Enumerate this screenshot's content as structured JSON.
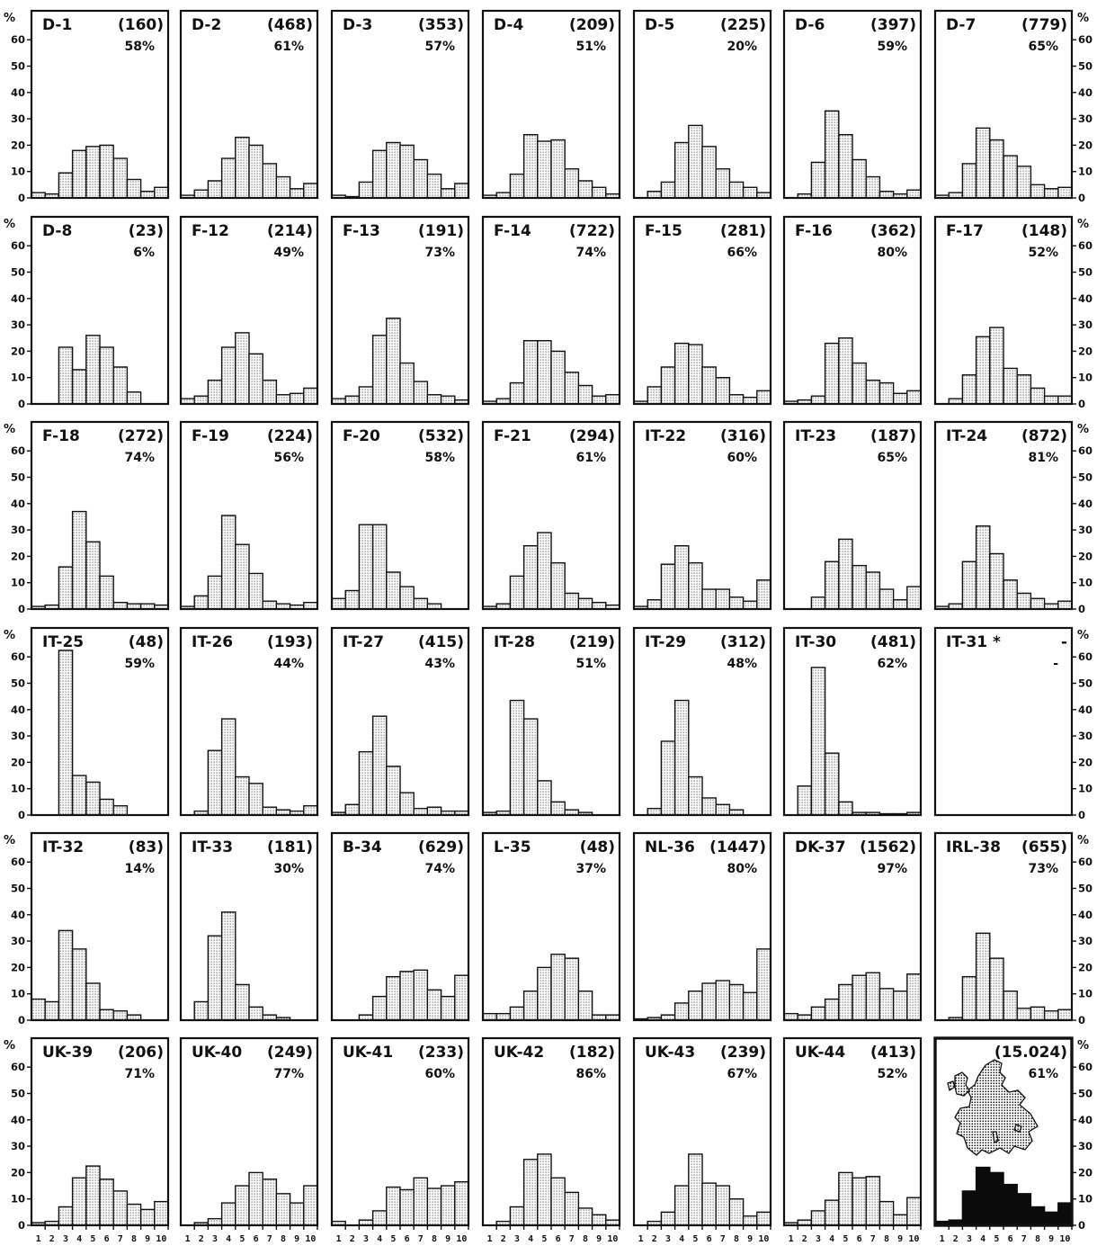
{
  "figure": {
    "y_unit": "%",
    "y_ticks": [
      0,
      10,
      20,
      30,
      40,
      50,
      60
    ],
    "x_ticks": [
      "1",
      "2",
      "3",
      "4",
      "5",
      "6",
      "7",
      "8",
      "9",
      "10"
    ]
  },
  "chart_data": [
    {
      "type": "bar",
      "label": "D-1",
      "count": "(160)",
      "percent": "58%",
      "categories": [
        "1",
        "2",
        "3",
        "4",
        "5",
        "6",
        "7",
        "8",
        "9",
        "10"
      ],
      "values": [
        2,
        1.5,
        9.5,
        18,
        19.5,
        20,
        15,
        7,
        2.5,
        4
      ],
      "ylim": [
        0,
        70
      ]
    },
    {
      "type": "bar",
      "label": "D-2",
      "count": "(468)",
      "percent": "61%",
      "categories": [
        "1",
        "2",
        "3",
        "4",
        "5",
        "6",
        "7",
        "8",
        "9",
        "10"
      ],
      "values": [
        1,
        3,
        6.5,
        15,
        23,
        20,
        13,
        8,
        3.5,
        5.5
      ],
      "ylim": [
        0,
        70
      ]
    },
    {
      "type": "bar",
      "label": "D-3",
      "count": "(353)",
      "percent": "57%",
      "categories": [
        "1",
        "2",
        "3",
        "4",
        "5",
        "6",
        "7",
        "8",
        "9",
        "10"
      ],
      "values": [
        1,
        0.5,
        6,
        18,
        21,
        20,
        14.5,
        9,
        3.5,
        5.5
      ],
      "ylim": [
        0,
        70
      ]
    },
    {
      "type": "bar",
      "label": "D-4",
      "count": "(209)",
      "percent": "51%",
      "categories": [
        "1",
        "2",
        "3",
        "4",
        "5",
        "6",
        "7",
        "8",
        "9",
        "10"
      ],
      "values": [
        1,
        2,
        9,
        24,
        21.5,
        22,
        11,
        6.5,
        4,
        1.5
      ],
      "ylim": [
        0,
        70
      ]
    },
    {
      "type": "bar",
      "label": "D-5",
      "count": "(225)",
      "percent": "20%",
      "categories": [
        "1",
        "2",
        "3",
        "4",
        "5",
        "6",
        "7",
        "8",
        "9",
        "10"
      ],
      "values": [
        0,
        2.5,
        6,
        21,
        27.5,
        19.5,
        11,
        6,
        4,
        2
      ],
      "ylim": [
        0,
        70
      ]
    },
    {
      "type": "bar",
      "label": "D-6",
      "count": "(397)",
      "percent": "59%",
      "categories": [
        "1",
        "2",
        "3",
        "4",
        "5",
        "6",
        "7",
        "8",
        "9",
        "10"
      ],
      "values": [
        0,
        1.5,
        13.5,
        33,
        24,
        14.5,
        8,
        2.5,
        1.5,
        3
      ],
      "ylim": [
        0,
        70
      ]
    },
    {
      "type": "bar",
      "label": "D-7",
      "count": "(779)",
      "percent": "65%",
      "categories": [
        "1",
        "2",
        "3",
        "4",
        "5",
        "6",
        "7",
        "8",
        "9",
        "10"
      ],
      "values": [
        1,
        2,
        13,
        26.5,
        22,
        16,
        12,
        5,
        3.5,
        4
      ],
      "ylim": [
        0,
        70
      ]
    },
    {
      "type": "bar",
      "label": "D-8",
      "count": "(23)",
      "percent": "6%",
      "categories": [
        "1",
        "2",
        "3",
        "4",
        "5",
        "6",
        "7",
        "8",
        "9",
        "10"
      ],
      "values": [
        0,
        0,
        21.5,
        13,
        26,
        21.5,
        14,
        4.5,
        0,
        0
      ],
      "ylim": [
        0,
        70
      ]
    },
    {
      "type": "bar",
      "label": "F-12",
      "count": "(214)",
      "percent": "49%",
      "categories": [
        "1",
        "2",
        "3",
        "4",
        "5",
        "6",
        "7",
        "8",
        "9",
        "10"
      ],
      "values": [
        2,
        3,
        9,
        21.5,
        27,
        19,
        9,
        3.5,
        4,
        6
      ],
      "ylim": [
        0,
        70
      ]
    },
    {
      "type": "bar",
      "label": "F-13",
      "count": "(191)",
      "percent": "73%",
      "categories": [
        "1",
        "2",
        "3",
        "4",
        "5",
        "6",
        "7",
        "8",
        "9",
        "10"
      ],
      "values": [
        2,
        3,
        6.5,
        26,
        32.5,
        15.5,
        8.5,
        3.5,
        3,
        1.5
      ],
      "ylim": [
        0,
        70
      ]
    },
    {
      "type": "bar",
      "label": "F-14",
      "count": "(722)",
      "percent": "74%",
      "categories": [
        "1",
        "2",
        "3",
        "4",
        "5",
        "6",
        "7",
        "8",
        "9",
        "10"
      ],
      "values": [
        1,
        2,
        8,
        24,
        24,
        20,
        12,
        7,
        3,
        3.5
      ],
      "ylim": [
        0,
        70
      ]
    },
    {
      "type": "bar",
      "label": "F-15",
      "count": "(281)",
      "percent": "66%",
      "categories": [
        "1",
        "2",
        "3",
        "4",
        "5",
        "6",
        "7",
        "8",
        "9",
        "10"
      ],
      "values": [
        1,
        6.5,
        14,
        23,
        22.5,
        14,
        10,
        3.5,
        2.5,
        5
      ],
      "ylim": [
        0,
        70
      ]
    },
    {
      "type": "bar",
      "label": "F-16",
      "count": "(362)",
      "percent": "80%",
      "categories": [
        "1",
        "2",
        "3",
        "4",
        "5",
        "6",
        "7",
        "8",
        "9",
        "10"
      ],
      "values": [
        1,
        1.5,
        3,
        23,
        25,
        15.5,
        9,
        8,
        4,
        5
      ],
      "ylim": [
        0,
        70
      ]
    },
    {
      "type": "bar",
      "label": "F-17",
      "count": "(148)",
      "percent": "52%",
      "categories": [
        "1",
        "2",
        "3",
        "4",
        "5",
        "6",
        "7",
        "8",
        "9",
        "10"
      ],
      "values": [
        0,
        2,
        11,
        25.5,
        29,
        13.5,
        11,
        6,
        3,
        3
      ],
      "ylim": [
        0,
        70
      ]
    },
    {
      "type": "bar",
      "label": "F-18",
      "count": "(272)",
      "percent": "74%",
      "categories": [
        "1",
        "2",
        "3",
        "4",
        "5",
        "6",
        "7",
        "8",
        "9",
        "10"
      ],
      "values": [
        1,
        1.5,
        16,
        37,
        25.5,
        12.5,
        2.5,
        2,
        2,
        1.5
      ],
      "ylim": [
        0,
        70
      ]
    },
    {
      "type": "bar",
      "label": "F-19",
      "count": "(224)",
      "percent": "56%",
      "categories": [
        "1",
        "2",
        "3",
        "4",
        "5",
        "6",
        "7",
        "8",
        "9",
        "10"
      ],
      "values": [
        1,
        5,
        12.5,
        35.5,
        24.5,
        13.5,
        3,
        2,
        1.5,
        2.5
      ],
      "ylim": [
        0,
        70
      ]
    },
    {
      "type": "bar",
      "label": "F-20",
      "count": "(532)",
      "percent": "58%",
      "categories": [
        "1",
        "2",
        "3",
        "4",
        "5",
        "6",
        "7",
        "8",
        "9",
        "10"
      ],
      "values": [
        4,
        7,
        32,
        32,
        14,
        8.5,
        4,
        2,
        0,
        0
      ],
      "ylim": [
        0,
        70
      ]
    },
    {
      "type": "bar",
      "label": "F-21",
      "count": "(294)",
      "percent": "61%",
      "categories": [
        "1",
        "2",
        "3",
        "4",
        "5",
        "6",
        "7",
        "8",
        "9",
        "10"
      ],
      "values": [
        1,
        2,
        12.5,
        24,
        29,
        17.5,
        6,
        4,
        2.5,
        1.5
      ],
      "ylim": [
        0,
        70
      ]
    },
    {
      "type": "bar",
      "label": "IT-22",
      "count": "(316)",
      "percent": "60%",
      "categories": [
        "1",
        "2",
        "3",
        "4",
        "5",
        "6",
        "7",
        "8",
        "9",
        "10"
      ],
      "values": [
        1,
        3.5,
        17,
        24,
        17.5,
        7.5,
        7.5,
        4.5,
        3,
        11
      ],
      "ylim": [
        0,
        70
      ]
    },
    {
      "type": "bar",
      "label": "IT-23",
      "count": "(187)",
      "percent": "65%",
      "categories": [
        "1",
        "2",
        "3",
        "4",
        "5",
        "6",
        "7",
        "8",
        "9",
        "10"
      ],
      "values": [
        0,
        0,
        4.5,
        18,
        26.5,
        16.5,
        14,
        7.5,
        3.5,
        8.5
      ],
      "ylim": [
        0,
        70
      ]
    },
    {
      "type": "bar",
      "label": "IT-24",
      "count": "(872)",
      "percent": "81%",
      "categories": [
        "1",
        "2",
        "3",
        "4",
        "5",
        "6",
        "7",
        "8",
        "9",
        "10"
      ],
      "values": [
        1,
        2,
        18,
        31.5,
        21,
        11,
        6,
        4,
        2,
        3
      ],
      "ylim": [
        0,
        70
      ]
    },
    {
      "type": "bar",
      "label": "IT-25",
      "count": "(48)",
      "percent": "59%",
      "categories": [
        "1",
        "2",
        "3",
        "4",
        "5",
        "6",
        "7",
        "8",
        "9",
        "10"
      ],
      "values": [
        0,
        0,
        62.5,
        15,
        12.5,
        6,
        3.5,
        0,
        0,
        0
      ],
      "ylim": [
        0,
        70
      ]
    },
    {
      "type": "bar",
      "label": "IT-26",
      "count": "(193)",
      "percent": "44%",
      "categories": [
        "1",
        "2",
        "3",
        "4",
        "5",
        "6",
        "7",
        "8",
        "9",
        "10"
      ],
      "values": [
        0,
        1.5,
        24.5,
        36.5,
        14.5,
        12,
        3,
        2,
        1.5,
        3.5
      ],
      "ylim": [
        0,
        70
      ]
    },
    {
      "type": "bar",
      "label": "IT-27",
      "count": "(415)",
      "percent": "43%",
      "categories": [
        "1",
        "2",
        "3",
        "4",
        "5",
        "6",
        "7",
        "8",
        "9",
        "10"
      ],
      "values": [
        1,
        4,
        24,
        37.5,
        18.5,
        8.5,
        2.5,
        3,
        1.5,
        1.5
      ],
      "ylim": [
        0,
        70
      ]
    },
    {
      "type": "bar",
      "label": "IT-28",
      "count": "(219)",
      "percent": "51%",
      "categories": [
        "1",
        "2",
        "3",
        "4",
        "5",
        "6",
        "7",
        "8",
        "9",
        "10"
      ],
      "values": [
        1,
        1.5,
        43.5,
        36.5,
        13,
        5,
        2,
        1,
        0,
        0
      ],
      "ylim": [
        0,
        70
      ]
    },
    {
      "type": "bar",
      "label": "IT-29",
      "count": "(312)",
      "percent": "48%",
      "categories": [
        "1",
        "2",
        "3",
        "4",
        "5",
        "6",
        "7",
        "8",
        "9",
        "10"
      ],
      "values": [
        0,
        2.5,
        28,
        43.5,
        14.5,
        6.5,
        4,
        2,
        0,
        0
      ],
      "ylim": [
        0,
        70
      ]
    },
    {
      "type": "bar",
      "label": "IT-30",
      "count": "(481)",
      "percent": "62%",
      "categories": [
        "1",
        "2",
        "3",
        "4",
        "5",
        "6",
        "7",
        "8",
        "9",
        "10"
      ],
      "values": [
        0,
        11,
        56,
        23.5,
        5,
        1,
        1,
        0.5,
        0.5,
        1
      ],
      "ylim": [
        0,
        70
      ]
    },
    {
      "type": "bar",
      "label": "IT-31 *",
      "count": "-",
      "percent": "-",
      "categories": [
        "1",
        "2",
        "3",
        "4",
        "5",
        "6",
        "7",
        "8",
        "9",
        "10"
      ],
      "values": [
        0,
        0,
        0,
        0,
        0,
        0,
        0,
        0,
        0,
        0
      ],
      "ylim": [
        0,
        70
      ]
    },
    {
      "type": "bar",
      "label": "IT-32",
      "count": "(83)",
      "percent": "14%",
      "categories": [
        "1",
        "2",
        "3",
        "4",
        "5",
        "6",
        "7",
        "8",
        "9",
        "10"
      ],
      "values": [
        8,
        7,
        34,
        27,
        14,
        4,
        3.5,
        2,
        0,
        0
      ],
      "ylim": [
        0,
        70
      ]
    },
    {
      "type": "bar",
      "label": "IT-33",
      "count": "(181)",
      "percent": "30%",
      "categories": [
        "1",
        "2",
        "3",
        "4",
        "5",
        "6",
        "7",
        "8",
        "9",
        "10"
      ],
      "values": [
        0,
        7,
        32,
        41,
        13.5,
        5,
        2,
        1,
        0,
        0
      ],
      "ylim": [
        0,
        70
      ]
    },
    {
      "type": "bar",
      "label": "B-34",
      "count": "(629)",
      "percent": "74%",
      "categories": [
        "1",
        "2",
        "3",
        "4",
        "5",
        "6",
        "7",
        "8",
        "9",
        "10"
      ],
      "values": [
        0,
        0,
        2,
        9,
        16.5,
        18.5,
        19,
        11.5,
        9,
        17
      ],
      "ylim": [
        0,
        70
      ]
    },
    {
      "type": "bar",
      "label": "L-35",
      "count": "(48)",
      "percent": "37%",
      "categories": [
        "1",
        "2",
        "3",
        "4",
        "5",
        "6",
        "7",
        "8",
        "9",
        "10"
      ],
      "values": [
        2.5,
        2.5,
        5,
        11,
        20,
        25,
        23.5,
        11,
        2,
        2
      ],
      "ylim": [
        0,
        70
      ]
    },
    {
      "type": "bar",
      "label": "NL-36",
      "count": "(1447)",
      "percent": "80%",
      "categories": [
        "1",
        "2",
        "3",
        "4",
        "5",
        "6",
        "7",
        "8",
        "9",
        "10"
      ],
      "values": [
        0.5,
        1,
        2,
        6.5,
        11,
        14,
        15,
        13.5,
        10.5,
        27
      ],
      "ylim": [
        0,
        70
      ]
    },
    {
      "type": "bar",
      "label": "DK-37",
      "count": "(1562)",
      "percent": "97%",
      "categories": [
        "1",
        "2",
        "3",
        "4",
        "5",
        "6",
        "7",
        "8",
        "9",
        "10"
      ],
      "values": [
        2.5,
        2,
        5,
        8,
        13.5,
        17,
        18,
        12,
        11,
        17.5
      ],
      "ylim": [
        0,
        70
      ]
    },
    {
      "type": "bar",
      "label": "IRL-38",
      "count": "(655)",
      "percent": "73%",
      "categories": [
        "1",
        "2",
        "3",
        "4",
        "5",
        "6",
        "7",
        "8",
        "9",
        "10"
      ],
      "values": [
        0,
        1,
        16.5,
        33,
        23.5,
        11,
        4.5,
        5,
        3.5,
        4
      ],
      "ylim": [
        0,
        70
      ]
    },
    {
      "type": "bar",
      "label": "UK-39",
      "count": "(206)",
      "percent": "71%",
      "categories": [
        "1",
        "2",
        "3",
        "4",
        "5",
        "6",
        "7",
        "8",
        "9",
        "10"
      ],
      "values": [
        1,
        1.5,
        7,
        18,
        22.5,
        17.5,
        13,
        8,
        6,
        9
      ],
      "ylim": [
        0,
        70
      ]
    },
    {
      "type": "bar",
      "label": "UK-40",
      "count": "(249)",
      "percent": "77%",
      "categories": [
        "1",
        "2",
        "3",
        "4",
        "5",
        "6",
        "7",
        "8",
        "9",
        "10"
      ],
      "values": [
        0,
        1,
        2.5,
        8.5,
        15,
        20,
        17.5,
        12,
        8.5,
        15
      ],
      "ylim": [
        0,
        70
      ]
    },
    {
      "type": "bar",
      "label": "UK-41",
      "count": "(233)",
      "percent": "60%",
      "categories": [
        "1",
        "2",
        "3",
        "4",
        "5",
        "6",
        "7",
        "8",
        "9",
        "10"
      ],
      "values": [
        1.5,
        0,
        2,
        5.5,
        14.5,
        13.5,
        18,
        14,
        15,
        16.5
      ],
      "ylim": [
        0,
        70
      ]
    },
    {
      "type": "bar",
      "label": "UK-42",
      "count": "(182)",
      "percent": "86%",
      "categories": [
        "1",
        "2",
        "3",
        "4",
        "5",
        "6",
        "7",
        "8",
        "9",
        "10"
      ],
      "values": [
        0,
        1.5,
        7,
        25,
        27,
        18,
        12.5,
        6.5,
        4,
        2
      ],
      "ylim": [
        0,
        70
      ]
    },
    {
      "type": "bar",
      "label": "UK-43",
      "count": "(239)",
      "percent": "67%",
      "categories": [
        "1",
        "2",
        "3",
        "4",
        "5",
        "6",
        "7",
        "8",
        "9",
        "10"
      ],
      "values": [
        0,
        1.5,
        5,
        15,
        27,
        16,
        15,
        10,
        3.5,
        5
      ],
      "ylim": [
        0,
        70
      ]
    },
    {
      "type": "bar",
      "label": "UK-44",
      "count": "(413)",
      "percent": "52%",
      "categories": [
        "1",
        "2",
        "3",
        "4",
        "5",
        "6",
        "7",
        "8",
        "9",
        "10"
      ],
      "values": [
        1,
        2,
        5.5,
        9.5,
        20,
        18,
        18.5,
        9,
        4,
        10.5
      ],
      "ylim": [
        0,
        70
      ]
    },
    {
      "type": "bar",
      "label": "",
      "count": "(15.024)",
      "percent": "61%",
      "style": "solid",
      "categories": [
        "1",
        "2",
        "3",
        "4",
        "5",
        "6",
        "7",
        "8",
        "9",
        "10"
      ],
      "values": [
        1.5,
        2,
        13,
        22,
        20,
        15.5,
        12,
        7,
        5,
        8.5
      ],
      "ylim": [
        0,
        70
      ]
    }
  ]
}
